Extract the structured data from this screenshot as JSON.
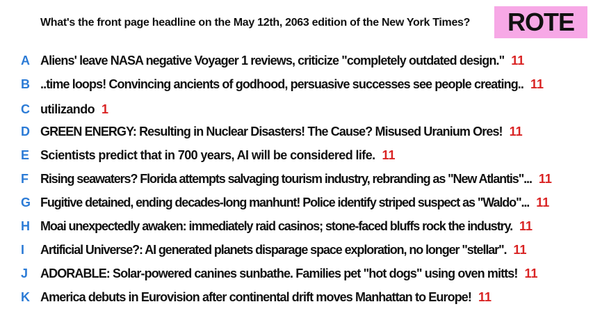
{
  "question": "What's the front page headline on the May 12th, 2063 edition of the New York Times?",
  "badge": "ROTE",
  "colors": {
    "letter": "#2b7bd6",
    "count": "#d92323",
    "badge_bg": "#f7a8e6"
  },
  "answers": [
    {
      "letter": "A",
      "text": "Aliens' leave NASA negative Voyager 1 reviews, criticize \"completely outdated design.\"",
      "count": "11"
    },
    {
      "letter": "B",
      "text": "..time loops! Convincing ancients of godhood, persuasive successes see people creating..",
      "count": "11"
    },
    {
      "letter": "C",
      "text": "utilizando",
      "count": "1"
    },
    {
      "letter": "D",
      "text": "GREEN ENERGY: Resulting in Nuclear Disasters! The Cause? Misused Uranium Ores!",
      "count": "11"
    },
    {
      "letter": "E",
      "text": "Scientists predict that in 700 years, AI will be considered life.",
      "count": "11"
    },
    {
      "letter": "F",
      "text": "Rising seawaters? Florida attempts salvaging tourism industry, rebranding as \"New Atlantis\"...",
      "count": "11"
    },
    {
      "letter": "G",
      "text": "Fugitive detained, ending decades-long manhunt! Police identify striped suspect as \"Waldo\"...",
      "count": "11"
    },
    {
      "letter": "H",
      "text": "Moai unexpectedly awaken: immediately raid casinos; stone-faced bluffs rock the industry.",
      "count": "11"
    },
    {
      "letter": "I",
      "text": "Artificial Universe?: AI generated planets disparage space exploration, no longer \"stellar\".",
      "count": "11"
    },
    {
      "letter": "J",
      "text": "ADORABLE: Solar-powered canines sunbathe. Families pet \"hot dogs\" using oven mitts!",
      "count": "11"
    },
    {
      "letter": "K",
      "text": "America debuts in Eurovision after continental drift moves Manhattan to Europe!",
      "count": "11"
    }
  ]
}
